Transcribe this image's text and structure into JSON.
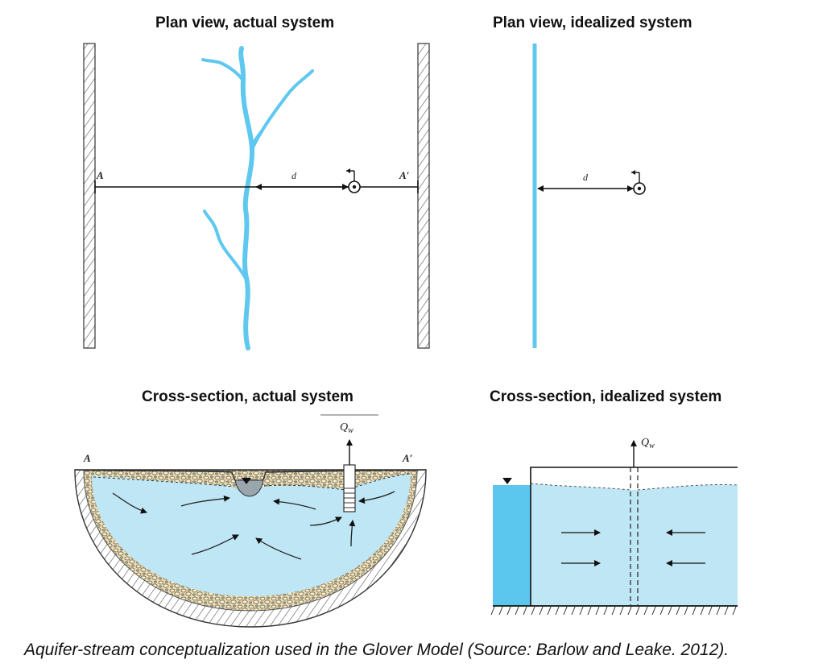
{
  "panels": {
    "plan_actual": {
      "title": "Plan view, actual system",
      "label_left": "A",
      "label_right": "A′",
      "distance_label": "d"
    },
    "plan_idealized": {
      "title": "Plan view, idealized system",
      "distance_label": "d"
    },
    "cross_actual": {
      "title": "Cross-section, actual  system",
      "label_left": "A",
      "label_right": "A′",
      "pumping_label": "Q",
      "pumping_sub": "w"
    },
    "cross_idealized": {
      "title": "Cross-section, idealized system",
      "pumping_label": "Q",
      "pumping_sub": "w"
    }
  },
  "caption": "Aquifer-stream conceptualization used in the Glover Model (Source: Barlow and Leake. 2012).",
  "colors": {
    "stream": "#5ec8ee",
    "aquifer_water": "#bfe6f5",
    "stream_water_ideal": "#5bc6ee",
    "line": "#111111",
    "gravel": "#e9d9b0"
  }
}
